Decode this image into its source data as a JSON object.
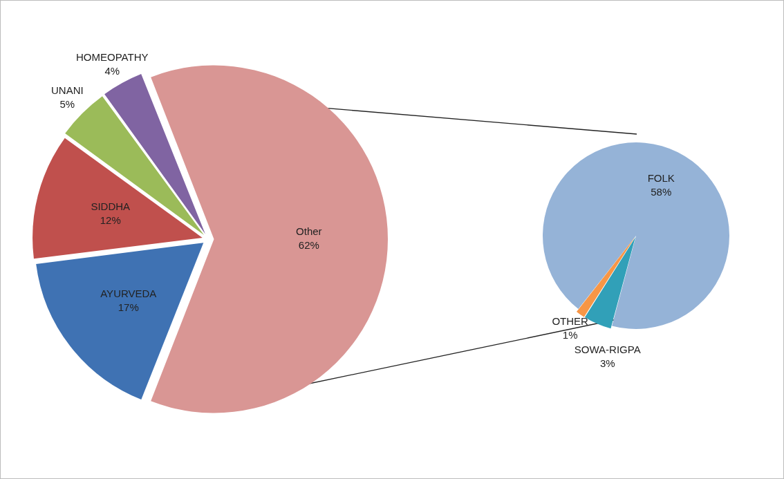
{
  "chart_data": [
    {
      "type": "pie",
      "categories": [
        "Other",
        "AYURVEDA",
        "SIDDHA",
        "UNANI",
        "HOMEOPATHY"
      ],
      "values": [
        62,
        17,
        12,
        5,
        4
      ],
      "colors": [
        "#d99694",
        "#3f72b3",
        "#c0504d",
        "#9bbb59",
        "#8064a2"
      ],
      "value_labels": [
        "62%",
        "17%",
        "12%",
        "5%",
        "4%"
      ],
      "legend": false
    },
    {
      "type": "pie",
      "categories": [
        "FOLK",
        "SOWA-RIGPA",
        "OTHER"
      ],
      "values": [
        58,
        3,
        1
      ],
      "colors": [
        "#95b3d7",
        "#31a0b8",
        "#f79646"
      ],
      "value_labels": [
        "58%",
        "3%",
        "1%"
      ],
      "legend": false
    }
  ]
}
